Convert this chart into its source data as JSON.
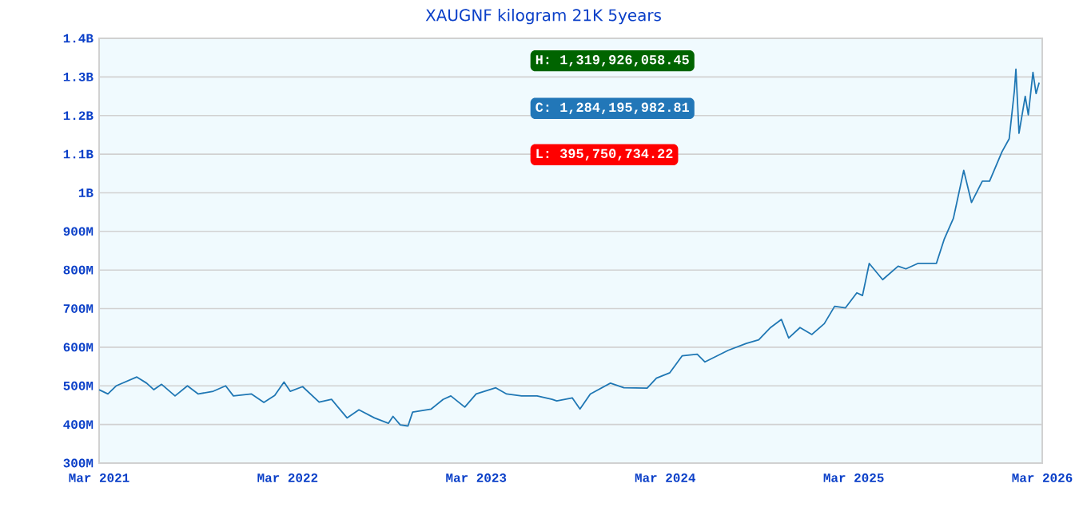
{
  "chart_data": {
    "type": "line",
    "title": "XAUGNF kilogram 21K 5years",
    "x": [
      "2021-03-01",
      "2021-03-18",
      "2021-04-03",
      "2021-05-13",
      "2021-06-01",
      "2021-06-15",
      "2021-06-30",
      "2021-07-26",
      "2021-08-19",
      "2021-09-09",
      "2021-10-08",
      "2021-11-01",
      "2021-11-16",
      "2021-12-21",
      "2022-01-14",
      "2022-02-04",
      "2022-02-22",
      "2022-03-06",
      "2022-03-30",
      "2022-05-01",
      "2022-05-25",
      "2022-06-24",
      "2022-07-17",
      "2022-08-16",
      "2022-09-12",
      "2022-09-21",
      "2022-10-05",
      "2022-10-20",
      "2022-10-29",
      "2022-12-04",
      "2022-12-27",
      "2023-01-11",
      "2023-02-07",
      "2023-03-01",
      "2023-04-08",
      "2023-04-29",
      "2023-05-28",
      "2023-06-27",
      "2023-07-26",
      "2023-08-04",
      "2023-09-03",
      "2023-09-18",
      "2023-10-08",
      "2023-11-16",
      "2023-12-12",
      "2024-01-26",
      "2024-02-13",
      "2024-03-10",
      "2024-04-03",
      "2024-05-02",
      "2024-05-17",
      "2024-06-07",
      "2024-07-01",
      "2024-08-05",
      "2024-08-29",
      "2024-09-21",
      "2024-10-12",
      "2024-10-26",
      "2024-11-17",
      "2024-12-10",
      "2025-01-03",
      "2025-01-23",
      "2025-02-13",
      "2025-03-07",
      "2025-03-18",
      "2025-03-31",
      "2025-04-26",
      "2025-05-26",
      "2025-06-10",
      "2025-07-03",
      "2025-08-08",
      "2025-08-23",
      "2025-09-10",
      "2025-09-30",
      "2025-10-15",
      "2025-11-05",
      "2025-11-19",
      "2025-12-13",
      "2025-12-27",
      "2026-01-06",
      "2026-01-09",
      "2026-01-15",
      "2026-01-27",
      "2026-02-02",
      "2026-02-11",
      "2026-02-17",
      "2026-02-23"
    ],
    "series": [
      {
        "color": "#1f77b4",
        "values": [
          490000000,
          479000000,
          500000000,
          523000000,
          507000000,
          490000000,
          504000000,
          474000000,
          500000000,
          479000000,
          486000000,
          500000000,
          474000000,
          479000000,
          457000000,
          475000000,
          510000000,
          486000000,
          498000000,
          458000000,
          465000000,
          417000000,
          438000000,
          417000000,
          403000000,
          421000000,
          399000000,
          396000000,
          432000000,
          440000000,
          465000000,
          474000000,
          445000000,
          479000000,
          495000000,
          479000000,
          474000000,
          474000000,
          465000000,
          461000000,
          469000000,
          440000000,
          479000000,
          507000000,
          495000000,
          494000000,
          520000000,
          534000000,
          578000000,
          582000000,
          562000000,
          576000000,
          592000000,
          610000000,
          619000000,
          651000000,
          672000000,
          624000000,
          651000000,
          633000000,
          661000000,
          706000000,
          702000000,
          741000000,
          734000000,
          817000000,
          775000000,
          810000000,
          803000000,
          817000000,
          817000000,
          879000000,
          934000000,
          1058000000,
          975000000,
          1030000000,
          1030000000,
          1106000000,
          1140000000,
          1264000000,
          1320000000,
          1154000000,
          1250000000,
          1202000000,
          1312000000,
          1257000000,
          1285000000
        ]
      }
    ],
    "xlim": [
      "2021-03-01",
      "2026-03-01"
    ],
    "xticks": [
      {
        "value": "2021-03-01",
        "label": "Mar 2021"
      },
      {
        "value": "2022-03-01",
        "label": "Mar 2022"
      },
      {
        "value": "2023-03-01",
        "label": "Mar 2023"
      },
      {
        "value": "2024-03-01",
        "label": "Mar 2024"
      },
      {
        "value": "2025-03-01",
        "label": "Mar 2025"
      },
      {
        "value": "2026-03-01",
        "label": "Mar 2026"
      }
    ],
    "ylim": [
      300000000,
      1400000000
    ],
    "yticks": [
      {
        "value": 300000000,
        "label": "300M"
      },
      {
        "value": 400000000,
        "label": "400M"
      },
      {
        "value": 500000000,
        "label": "500M"
      },
      {
        "value": 600000000,
        "label": "600M"
      },
      {
        "value": 700000000,
        "label": "700M"
      },
      {
        "value": 800000000,
        "label": "800M"
      },
      {
        "value": 900000000,
        "label": "900M"
      },
      {
        "value": 1000000000,
        "label": "1B"
      },
      {
        "value": 1100000000,
        "label": "1.1B"
      },
      {
        "value": 1200000000,
        "label": "1.2B"
      },
      {
        "value": 1300000000,
        "label": "1.3B"
      },
      {
        "value": 1400000000,
        "label": "1.4B"
      }
    ],
    "grid": "y",
    "annotations": [
      "H: 1,319,926,058.45",
      "C: 1,284,195,982.81",
      "L: 395,750,734.22"
    ]
  }
}
